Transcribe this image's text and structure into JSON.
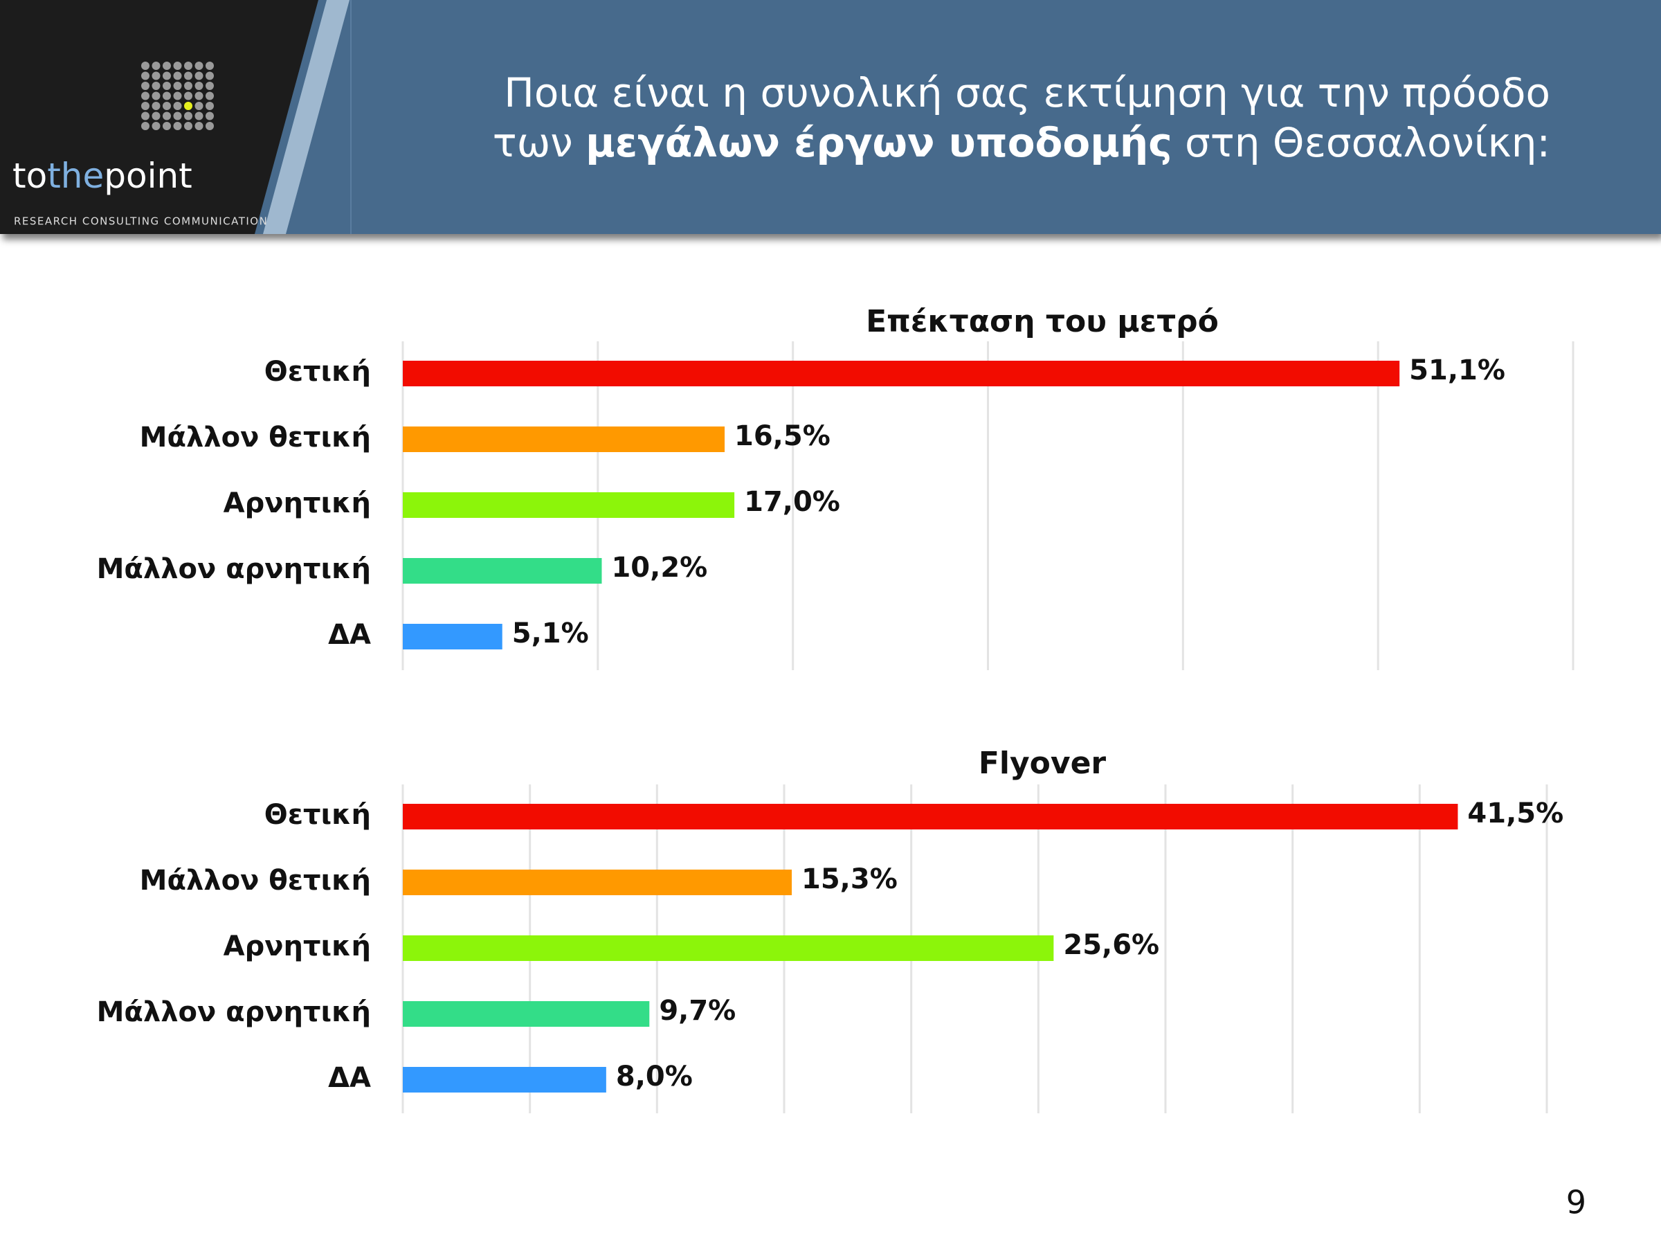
{
  "header": {
    "title_line1": "Ποια είναι η συνολική σας εκτίμηση για την πρόοδο",
    "title_line2_start": "των",
    "title_line2_bold": "μεγάλων έργων υποδομής",
    "title_line2_end": "στη Θεσσαλονίκη:"
  },
  "logo": {
    "to": "to",
    "the": "the",
    "point": "point",
    "tagline": "RESEARCH CONSULTING COMMUNICATION"
  },
  "chart_data": [
    {
      "type": "bar",
      "orientation": "horizontal",
      "title": "Επέκταση του μετρό",
      "categories": [
        "Θετική",
        "Μάλλον θετική",
        "Αρνητική",
        "Μάλλον αρνητική",
        "ΔΑ"
      ],
      "values": [
        51.1,
        16.5,
        17.0,
        10.2,
        5.1
      ],
      "value_labels": [
        "51,1%",
        "16,5%",
        "17,0%",
        "10,2%",
        "5,1%"
      ],
      "colors": [
        "#f20c00",
        "#ff9900",
        "#8cf50a",
        "#33dd88",
        "#3399ff"
      ],
      "xlim": [
        0,
        60
      ],
      "xticks": [
        0,
        10,
        20,
        30,
        40,
        50,
        60
      ],
      "grid": true
    },
    {
      "type": "bar",
      "orientation": "horizontal",
      "title": "Flyover",
      "categories": [
        "Θετική",
        "Μάλλον θετική",
        "Αρνητική",
        "Μάλλον αρνητική",
        "ΔΑ"
      ],
      "values": [
        41.5,
        15.3,
        25.6,
        9.7,
        8.0
      ],
      "value_labels": [
        "41,5%",
        "15,3%",
        "25,6%",
        "9,7%",
        "8,0%"
      ],
      "colors": [
        "#f20c00",
        "#ff9900",
        "#8cf50a",
        "#33dd88",
        "#3399ff"
      ],
      "xlim": [
        0,
        45
      ],
      "xticks": [
        0,
        5,
        10,
        15,
        20,
        25,
        30,
        35,
        40,
        45
      ],
      "grid": true
    }
  ],
  "page_number": "9"
}
